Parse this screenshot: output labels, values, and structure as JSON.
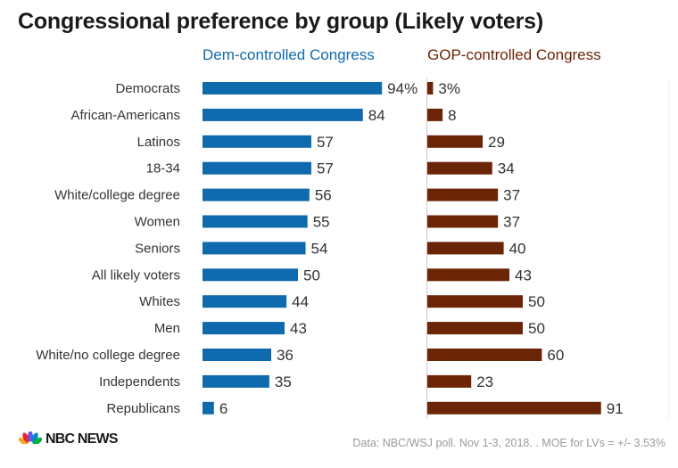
{
  "chart_data": {
    "type": "bar",
    "title": "Congressional preference by group (Likely voters)",
    "categories": [
      "Democrats",
      "African-Americans",
      "Latinos",
      "18-34",
      "White/college degree",
      "Women",
      "Seniors",
      "All likely voters",
      "Whites",
      "Men",
      "White/no college degree",
      "Independents",
      "Republicans"
    ],
    "series": [
      {
        "name": "Dem-controlled Congress",
        "color": "#0f6aad",
        "values": [
          94,
          84,
          57,
          57,
          56,
          55,
          54,
          50,
          44,
          43,
          36,
          35,
          6
        ],
        "labels": [
          "94%",
          "84",
          "57",
          "57",
          "56",
          "55",
          "54",
          "50",
          "44",
          "43",
          "36",
          "35",
          "6"
        ]
      },
      {
        "name": "GOP-controlled Congress",
        "color": "#6b2406",
        "values": [
          3,
          8,
          29,
          34,
          37,
          37,
          40,
          43,
          50,
          50,
          60,
          23,
          91
        ],
        "labels": [
          "3%",
          "8",
          "29",
          "34",
          "37",
          "37",
          "40",
          "43",
          "50",
          "50",
          "60",
          "23",
          "91"
        ]
      }
    ],
    "xlim": [
      0,
      100
    ],
    "grid": false,
    "legend": "top"
  },
  "footer": {
    "source": "Data: NBC/WSJ poll. Nov 1-3, 2018. . MOE for LVs = +/- 3.53%",
    "logo_text": "NBC NEWS"
  },
  "colors": {
    "text": "#333333",
    "axis_line": "#cccccc"
  }
}
